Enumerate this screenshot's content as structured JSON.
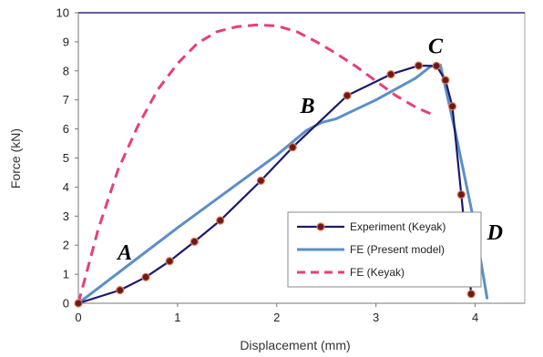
{
  "chart_data": {
    "type": "line",
    "title": "",
    "xlabel": "Displacement (mm)",
    "ylabel": "Force (kN)",
    "xlim": [
      0,
      4.5
    ],
    "ylim": [
      0,
      10
    ],
    "x_ticks": [
      0,
      1,
      2,
      3,
      4
    ],
    "y_ticks": [
      0,
      1,
      2,
      3,
      4,
      5,
      6,
      7,
      8,
      9,
      10
    ],
    "grid": false,
    "legend_position": "bottom-right",
    "series": [
      {
        "name": "Experiment (Keyak)",
        "color": "#1a1a6e",
        "marker_color": "#6b1a1a",
        "style": "solid-with-markers",
        "x": [
          0,
          0.42,
          0.68,
          0.92,
          1.17,
          1.43,
          1.84,
          2.16,
          2.71,
          3.15,
          3.43,
          3.61,
          3.7,
          3.77,
          3.86,
          3.96
        ],
        "y": [
          0,
          0.45,
          0.9,
          1.45,
          2.12,
          2.85,
          4.22,
          5.37,
          7.15,
          7.88,
          8.18,
          8.17,
          7.68,
          6.78,
          3.74,
          0.32
        ]
      },
      {
        "name": "FE (Present model)",
        "color": "#5b8fc7",
        "style": "solid",
        "x": [
          0,
          0.5,
          1.0,
          1.5,
          2.0,
          2.3,
          2.45,
          2.6,
          3.0,
          3.4,
          3.55,
          3.65,
          3.8,
          4.0,
          4.12
        ],
        "y": [
          0,
          1.3,
          2.6,
          3.85,
          5.1,
          5.95,
          6.22,
          6.35,
          7.0,
          7.75,
          8.15,
          8.2,
          5.9,
          2.6,
          0.18
        ]
      },
      {
        "name": "FE (Keyak)",
        "color": "#e83e7a",
        "style": "dashed",
        "x": [
          0,
          0.2,
          0.4,
          0.6,
          0.8,
          1.0,
          1.2,
          1.4,
          1.6,
          1.8,
          2.0,
          2.2,
          2.4,
          2.6,
          2.8,
          3.0,
          3.2,
          3.4,
          3.6
        ],
        "y": [
          0,
          2.55,
          4.6,
          6.1,
          7.35,
          8.25,
          8.95,
          9.35,
          9.52,
          9.58,
          9.55,
          9.35,
          9.0,
          8.6,
          8.15,
          7.65,
          7.15,
          6.75,
          6.45
        ]
      }
    ],
    "annotations": [
      {
        "text": "A",
        "x": 0.47,
        "y": 1.5
      },
      {
        "text": "B",
        "x": 2.31,
        "y": 6.55
      },
      {
        "text": "C",
        "x": 3.6,
        "y": 8.6
      },
      {
        "text": "D",
        "x": 4.2,
        "y": 2.2
      }
    ]
  }
}
